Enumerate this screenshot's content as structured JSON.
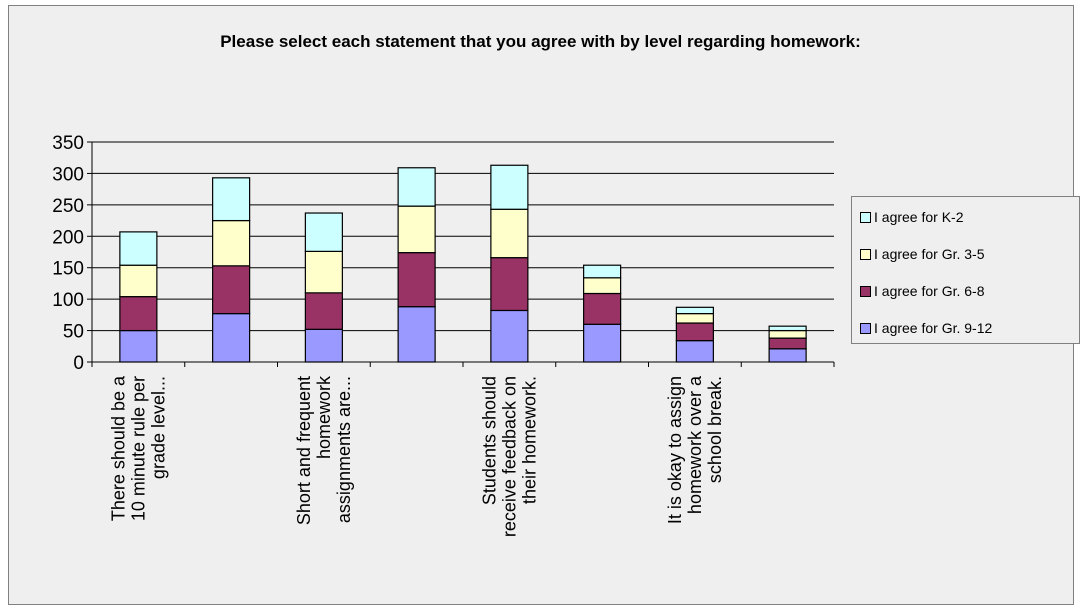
{
  "chart_data": {
    "type": "bar",
    "stacked": true,
    "title": "Please select each statement that you agree with by level regarding homework:",
    "ylim": [
      0,
      350
    ],
    "yticks": [
      0,
      50,
      100,
      150,
      200,
      250,
      300,
      350
    ],
    "grid": true,
    "legend_position": "right",
    "categories": [
      "There should be a 10 minute rule per grade level...",
      "",
      "Short and frequent homework assignments are...",
      "",
      "Students should receive feedback on their homework.",
      "",
      "It is okay to assign homework over a school break.",
      ""
    ],
    "category_label_lines": [
      [
        "There should be a",
        "10 minute rule per",
        "grade level..."
      ],
      [],
      [
        "Short and frequent",
        "homework",
        "assignments are..."
      ],
      [],
      [
        "Students should",
        "receive feedback on",
        "their homework."
      ],
      [],
      [
        "It is okay to assign",
        "homework over a",
        "school break."
      ],
      []
    ],
    "series": [
      {
        "name": "I agree for Gr. 9-12",
        "color": "#9999ff",
        "values": [
          50,
          77,
          52,
          88,
          82,
          60,
          34,
          21
        ]
      },
      {
        "name": "I agree for Gr. 6-8",
        "color": "#993366",
        "values": [
          54,
          76,
          58,
          86,
          84,
          49,
          28,
          17
        ]
      },
      {
        "name": "I agree for Gr. 3-5",
        "color": "#ffffcc",
        "values": [
          50,
          72,
          66,
          74,
          77,
          25,
          15,
          12
        ]
      },
      {
        "name": "I agree for K-2",
        "color": "#ccffff",
        "values": [
          53,
          68,
          61,
          61,
          70,
          20,
          10,
          7
        ]
      }
    ]
  }
}
